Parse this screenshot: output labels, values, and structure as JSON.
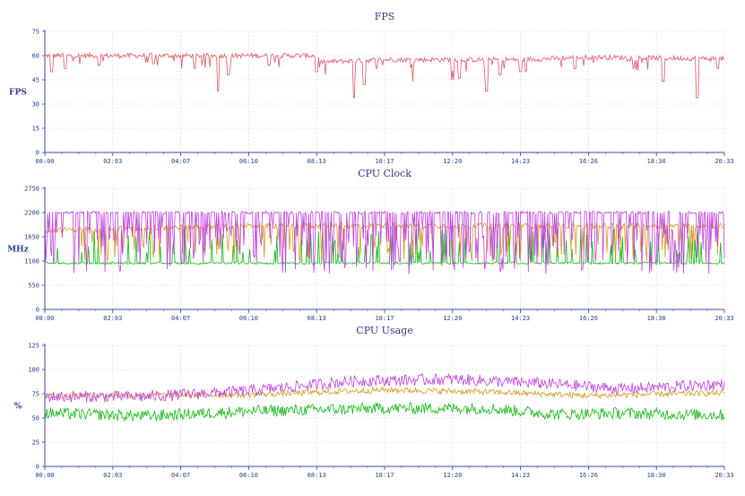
{
  "colors": {
    "axis": "#3a4aa0",
    "grid": "#d4d4d4",
    "text": "#2b3a8c",
    "fps": "#e05565",
    "clock_high": "#c040e0",
    "clock_mid": "#d49a1a",
    "clock_low": "#10b810"
  },
  "chart_data": [
    {
      "type": "line",
      "title": "FPS",
      "ylabel": "FPS",
      "ylim": [
        0,
        75
      ],
      "yticks": [
        "0",
        "15",
        "30",
        "45",
        "60",
        "75"
      ],
      "xticks": [
        "00:00",
        "02:03",
        "04:07",
        "06:10",
        "08:13",
        "10:17",
        "12:20",
        "14:23",
        "16:26",
        "18:30",
        "20:33"
      ],
      "grid": true,
      "series": [
        {
          "color": "#e05565",
          "base": 60,
          "noise": 1.5,
          "profile": [
            [
              0,
              60
            ],
            [
              0.4,
              60
            ],
            [
              0.405,
              56
            ],
            [
              0.5,
              57.5
            ],
            [
              0.7,
              57.5
            ],
            [
              0.8,
              59
            ],
            [
              1,
              58
            ]
          ],
          "dips": [
            [
              0.01,
              50
            ],
            [
              0.03,
              52
            ],
            [
              0.08,
              54
            ],
            [
              0.16,
              55
            ],
            [
              0.22,
              52
            ],
            [
              0.255,
              38
            ],
            [
              0.27,
              48
            ],
            [
              0.33,
              54
            ],
            [
              0.4,
              50
            ],
            [
              0.455,
              34
            ],
            [
              0.47,
              42
            ],
            [
              0.54,
              44
            ],
            [
              0.6,
              45
            ],
            [
              0.61,
              46
            ],
            [
              0.65,
              38
            ],
            [
              0.67,
              48
            ],
            [
              0.7,
              50
            ],
            [
              0.78,
              52
            ],
            [
              0.91,
              44
            ],
            [
              0.96,
              34
            ],
            [
              0.99,
              52
            ]
          ],
          "min": 0,
          "max": 75
        }
      ]
    },
    {
      "type": "line",
      "title": "CPU Clock",
      "ylabel": "MHz",
      "ylim": [
        0,
        2750
      ],
      "yticks": [
        "0",
        "550",
        "1100",
        "1650",
        "2200",
        "2750"
      ],
      "xticks": [
        "00:00",
        "02:03",
        "04:07",
        "06:10",
        "08:13",
        "10:17",
        "12:20",
        "14:23",
        "16:26",
        "18:30",
        "20:33"
      ],
      "grid": true,
      "series": [
        {
          "color": "#10b810",
          "base": 1050,
          "noise": 20,
          "profile": [
            [
              0,
              1050
            ],
            [
              1,
              1050
            ]
          ],
          "spikes": 0.12,
          "spikeMin": 1300,
          "spikeMax": 1850,
          "min": 0,
          "max": 2750
        },
        {
          "color": "#d49a1a",
          "base": 1900,
          "noise": 60,
          "profile": [
            [
              0,
              1800
            ],
            [
              0.3,
              1900
            ],
            [
              1,
              1900
            ]
          ],
          "spikes": 0.18,
          "spikeMin": 1100,
          "spikeMax": 1600,
          "min": 0,
          "max": 2750
        },
        {
          "color": "#c040e0",
          "base": 2200,
          "noise": 30,
          "profile": [
            [
              0,
              2200
            ],
            [
              1,
              2200
            ]
          ],
          "spikes": 0.35,
          "spikeMin": 800,
          "spikeMax": 1900,
          "min": 0,
          "max": 2750
        }
      ]
    },
    {
      "type": "line",
      "title": "CPU Usage",
      "ylabel": "%",
      "ylim": [
        0,
        125
      ],
      "yticks": [
        "0",
        "25",
        "50",
        "75",
        "100",
        "125"
      ],
      "xticks": [
        "00:00",
        "02:03",
        "04:07",
        "06:10",
        "08:13",
        "10:17",
        "12:20",
        "14:23",
        "16:26",
        "18:30",
        "20:33"
      ],
      "grid": true,
      "series": [
        {
          "color": "#10b810",
          "base": 55,
          "noise": 6,
          "profile": [
            [
              0,
              55
            ],
            [
              0.15,
              52
            ],
            [
              0.3,
              57
            ],
            [
              0.5,
              60
            ],
            [
              0.65,
              60
            ],
            [
              0.75,
              54
            ],
            [
              0.85,
              55
            ],
            [
              1,
              53
            ]
          ],
          "min": 0,
          "max": 125
        },
        {
          "color": "#d49a1a",
          "base": 74,
          "noise": 3,
          "profile": [
            [
              0,
              73
            ],
            [
              0.3,
              74
            ],
            [
              0.5,
              79
            ],
            [
              0.65,
              77
            ],
            [
              0.8,
              73
            ],
            [
              1,
              76
            ]
          ],
          "min": 0,
          "max": 125
        },
        {
          "color": "#c040e0",
          "base": 75,
          "noise": 6,
          "profile": [
            [
              0,
              72
            ],
            [
              0.15,
              72
            ],
            [
              0.3,
              78
            ],
            [
              0.45,
              88
            ],
            [
              0.6,
              90
            ],
            [
              0.75,
              85
            ],
            [
              0.85,
              80
            ],
            [
              1,
              85
            ]
          ],
          "min": 0,
          "max": 125
        }
      ]
    }
  ]
}
